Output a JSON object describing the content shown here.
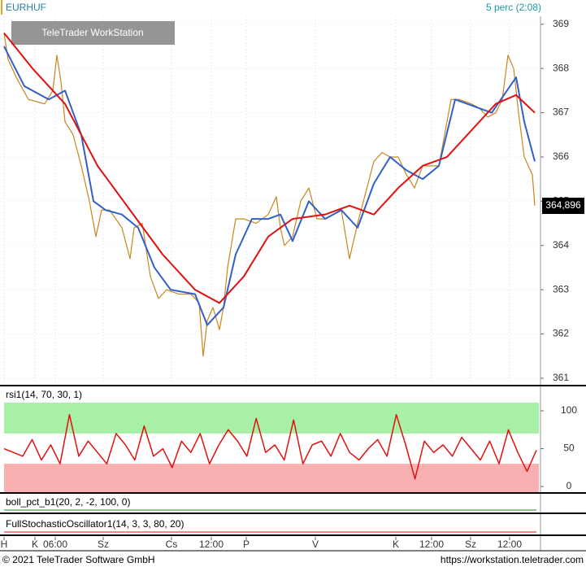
{
  "header": {
    "symbol": "EURHUF",
    "period": "5 perc (2:08)",
    "watermark": "TeleTrader WorkStation"
  },
  "footer": {
    "copyright": "© 2021 TeleTrader Software GmbH",
    "url": "https://workstation.teletrader.com"
  },
  "chart_data": [
    {
      "type": "line",
      "xlim": [
        0,
        665
      ],
      "ylim": [
        360.87,
        369.18
      ],
      "yticks": [
        361,
        362,
        363,
        364,
        365,
        366,
        367,
        368,
        369
      ],
      "xticks": [
        {
          "value": 5,
          "label": "H"
        },
        {
          "value": 43,
          "label": "K"
        },
        {
          "value": 68,
          "label": "06:00"
        },
        {
          "value": 127,
          "label": "Sz"
        },
        {
          "value": 211,
          "label": "Cs"
        },
        {
          "value": 260,
          "label": "12:00"
        },
        {
          "value": 303,
          "label": "P"
        },
        {
          "value": 388,
          "label": "V"
        },
        {
          "value": 487,
          "label": "K"
        },
        {
          "value": 531,
          "label": "12:00"
        },
        {
          "value": 579,
          "label": "Sz"
        },
        {
          "value": 627,
          "label": "12:00"
        }
      ],
      "last_value": {
        "value": 364.896,
        "label": "364,896"
      },
      "series": [
        {
          "color": "#c8861e",
          "width": 1.2,
          "x": [
            5,
            10,
            20,
            35,
            55,
            65,
            70,
            75,
            80,
            90,
            100,
            110,
            118,
            125,
            135,
            150,
            160,
            165,
            175,
            185,
            195,
            205,
            220,
            235,
            245,
            250,
            255,
            262,
            270,
            275,
            280,
            290,
            300,
            315,
            330,
            340,
            345,
            350,
            360,
            370,
            380,
            390,
            400,
            410,
            420,
            430,
            440,
            450,
            460,
            470,
            480,
            490,
            500,
            510,
            520,
            530,
            540,
            550,
            555,
            565,
            580,
            590,
            600,
            610,
            618,
            625,
            632,
            638,
            645,
            655,
            658
          ],
          "values": [
            368.8,
            368.2,
            367.8,
            367.3,
            367.2,
            367.5,
            368.3,
            367.7,
            366.8,
            366.5,
            365.8,
            365.0,
            364.2,
            364.8,
            364.8,
            364.4,
            363.7,
            364.4,
            364.5,
            363.3,
            362.8,
            363.0,
            362.9,
            362.9,
            362.7,
            361.5,
            362.3,
            362.6,
            362.1,
            362.6,
            363.5,
            364.6,
            364.6,
            364.5,
            364.7,
            365.1,
            364.4,
            364.0,
            364.2,
            365.0,
            365.3,
            364.6,
            364.6,
            364.7,
            364.8,
            363.7,
            364.5,
            365.2,
            365.9,
            366.1,
            366.0,
            366.0,
            365.6,
            365.3,
            365.8,
            365.8,
            365.8,
            366.8,
            367.3,
            367.3,
            367.2,
            367.1,
            366.9,
            367.0,
            367.3,
            368.3,
            368.0,
            367.0,
            366.0,
            365.6,
            364.9
          ]
        },
        {
          "color": "#3060c8",
          "width": 2,
          "x": [
            5,
            30,
            60,
            80,
            100,
            115,
            130,
            150,
            170,
            190,
            210,
            240,
            255,
            275,
            290,
            310,
            330,
            345,
            360,
            380,
            400,
            420,
            440,
            460,
            480,
            500,
            520,
            540,
            560,
            590,
            605,
            620,
            635,
            645,
            658
          ],
          "values": [
            368.5,
            367.6,
            367.3,
            367.5,
            366.5,
            365.0,
            364.8,
            364.7,
            364.4,
            363.5,
            363.0,
            362.9,
            362.2,
            362.6,
            363.8,
            364.6,
            364.6,
            364.7,
            364.1,
            365.0,
            364.6,
            364.8,
            364.4,
            365.4,
            366.0,
            365.7,
            365.5,
            365.8,
            367.3,
            367.1,
            367.0,
            367.4,
            367.8,
            366.8,
            365.9
          ]
        },
        {
          "color": "#e01010",
          "width": 2,
          "x": [
            5,
            40,
            80,
            120,
            160,
            200,
            240,
            270,
            300,
            330,
            360,
            400,
            430,
            460,
            490,
            520,
            550,
            580,
            610,
            635,
            658
          ],
          "values": [
            368.8,
            368.0,
            367.2,
            365.8,
            364.8,
            363.8,
            363.0,
            362.7,
            363.3,
            364.2,
            364.6,
            364.7,
            364.9,
            364.7,
            365.3,
            365.8,
            366.0,
            366.6,
            367.2,
            367.4,
            367.0
          ]
        }
      ]
    },
    {
      "type": "line",
      "title": "rsi1(14, 70, 30, 1)",
      "ylim": [
        -8.6,
        110.8
      ],
      "yticks": [
        0,
        50,
        100
      ],
      "upper_level": 70,
      "lower_level": 30,
      "upper_color": "#a8f0a8",
      "lower_color": "#f8b0b0",
      "series": [
        {
          "color": "#e01010",
          "width": 1.5,
          "values": [
            50,
            45,
            40,
            62,
            35,
            55,
            30,
            95,
            40,
            60,
            45,
            30,
            70,
            55,
            35,
            80,
            40,
            50,
            25,
            60,
            45,
            70,
            30,
            55,
            75,
            60,
            40,
            90,
            45,
            55,
            35,
            88,
            30,
            55,
            60,
            40,
            70,
            45,
            35,
            50,
            62,
            40,
            95,
            55,
            10,
            60,
            45,
            55,
            40,
            65,
            50,
            35,
            60,
            30,
            75,
            45,
            20,
            48
          ]
        }
      ]
    },
    {
      "type": "line",
      "title": "boll_pct_b1(20, 2, -2, 100, 0)"
    },
    {
      "type": "line",
      "title": "FullStochasticOscillator1(14, 3, 3, 80, 20)"
    }
  ]
}
